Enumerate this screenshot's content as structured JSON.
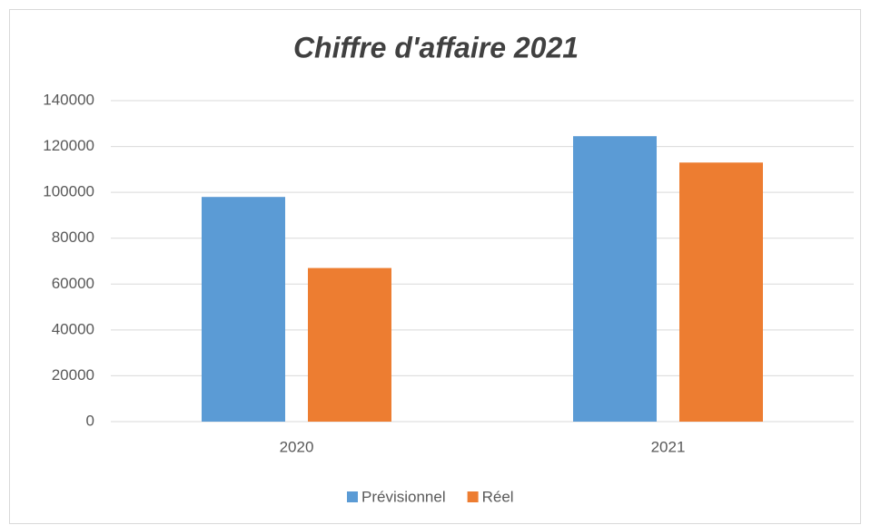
{
  "chart_data": {
    "type": "bar",
    "title": "Chiffre d'affaire 2021",
    "categories": [
      "2020",
      "2021"
    ],
    "series": [
      {
        "name": "Prévisionnel",
        "color": "#5b9bd5",
        "values": [
          98000,
          124500
        ]
      },
      {
        "name": "Réel",
        "color": "#ed7d31",
        "values": [
          67000,
          113000
        ]
      }
    ],
    "ylim": [
      0,
      140000
    ],
    "yticks": [
      0,
      20000,
      40000,
      60000,
      80000,
      100000,
      120000,
      140000
    ],
    "grid": true,
    "legend": "bottom"
  }
}
